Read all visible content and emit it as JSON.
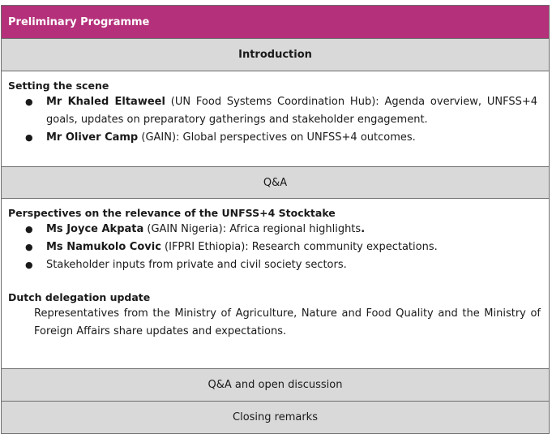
{
  "title": "Preliminary Programme",
  "introduction": "Introduction",
  "setting_scene": {
    "title": "Setting the scene",
    "items": [
      {
        "name": "Mr Khaled Eltaweel",
        "text": " (UN Food Systems Coordination Hub): Agenda overview, UNFSS+4 goals, updates on preparatory gatherings and stakeholder engagement."
      },
      {
        "name": "Mr Oliver Camp",
        "text": " (GAIN): Global perspectives on UNFSS+4 outcomes."
      }
    ]
  },
  "qa": "Q&A",
  "perspectives": {
    "title": "Perspectives on the relevance of the UNFSS+4 Stocktake",
    "items": [
      {
        "name": "Ms Joyce Akpata",
        "text": " (GAIN Nigeria): Africa regional highlights",
        "suffix": "."
      },
      {
        "name": "Ms Namukolo Covic",
        "text": " (IFPRI Ethiopia): Research community expectations."
      },
      {
        "name": "",
        "text": "Stakeholder inputs from private and civil society sectors."
      }
    ]
  },
  "dutch": {
    "title": "Dutch delegation update",
    "text": "Representatives from the Ministry of Agriculture, Nature and Food Quality and the Ministry of Foreign Affairs share updates and expectations."
  },
  "qa_open": "Q&A and open discussion",
  "closing": "Closing remarks",
  "bullet_glyph": "●"
}
